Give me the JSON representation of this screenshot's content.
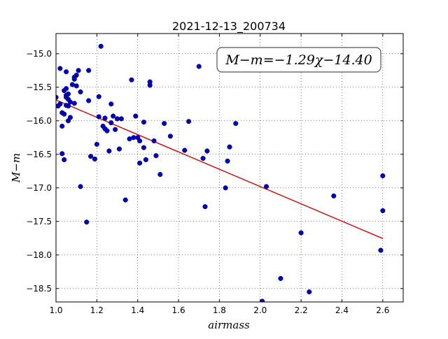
{
  "chart_data": {
    "type": "scatter",
    "title": "2021-12-13_200734",
    "xlabel": "airmass",
    "ylabel": "M−m",
    "xlim": [
      1.0,
      2.7
    ],
    "ylim": [
      -18.7,
      -14.7
    ],
    "y_inverted": true,
    "grid": true,
    "x_ticks": [
      1.0,
      1.2,
      1.4,
      1.6,
      1.8,
      2.0,
      2.2,
      2.4,
      2.6
    ],
    "x_tick_labels": [
      "1.0",
      "1.2",
      "1.4",
      "1.6",
      "1.8",
      "2.0",
      "2.2",
      "2.4",
      "2.6"
    ],
    "y_ticks": [
      -15.0,
      -15.5,
      -16.0,
      -16.5,
      -17.0,
      -17.5,
      -18.0,
      -18.5
    ],
    "y_tick_labels": [
      "−15.0",
      "−15.5",
      "−16.0",
      "−16.5",
      "−17.0",
      "−17.5",
      "−18.0",
      "−18.5"
    ],
    "annotation": "M−m=−1.29χ−14.40",
    "annotation_position": "top-right",
    "point_color": "#0000cc",
    "fit_color": "#dd0000",
    "fit_line": {
      "slope": -1.29,
      "intercept": -14.4,
      "x_range": [
        1.0,
        2.6
      ]
    },
    "points": [
      {
        "x": 1.0,
        "y": -15.65
      },
      {
        "x": 1.01,
        "y": -15.78
      },
      {
        "x": 1.02,
        "y": -15.75
      },
      {
        "x": 1.02,
        "y": -15.22
      },
      {
        "x": 1.03,
        "y": -15.88
      },
      {
        "x": 1.03,
        "y": -16.08
      },
      {
        "x": 1.03,
        "y": -16.49
      },
      {
        "x": 1.04,
        "y": -16.58
      },
      {
        "x": 1.04,
        "y": -15.9
      },
      {
        "x": 1.04,
        "y": -15.55
      },
      {
        "x": 1.05,
        "y": -15.62
      },
      {
        "x": 1.05,
        "y": -15.52
      },
      {
        "x": 1.05,
        "y": -15.77
      },
      {
        "x": 1.05,
        "y": -15.65
      },
      {
        "x": 1.05,
        "y": -15.27
      },
      {
        "x": 1.06,
        "y": -15.6
      },
      {
        "x": 1.06,
        "y": -15.68
      },
      {
        "x": 1.06,
        "y": -15.78
      },
      {
        "x": 1.06,
        "y": -16.0
      },
      {
        "x": 1.07,
        "y": -15.95
      },
      {
        "x": 1.07,
        "y": -15.72
      },
      {
        "x": 1.08,
        "y": -15.46
      },
      {
        "x": 1.09,
        "y": -15.74
      },
      {
        "x": 1.09,
        "y": -15.35
      },
      {
        "x": 1.09,
        "y": -15.38
      },
      {
        "x": 1.1,
        "y": -15.48
      },
      {
        "x": 1.1,
        "y": -15.32
      },
      {
        "x": 1.11,
        "y": -15.25
      },
      {
        "x": 1.12,
        "y": -15.57
      },
      {
        "x": 1.12,
        "y": -16.98
      },
      {
        "x": 1.15,
        "y": -17.51
      },
      {
        "x": 1.16,
        "y": -15.7
      },
      {
        "x": 1.16,
        "y": -15.25
      },
      {
        "x": 1.17,
        "y": -16.53
      },
      {
        "x": 1.19,
        "y": -16.57
      },
      {
        "x": 1.2,
        "y": -16.35
      },
      {
        "x": 1.21,
        "y": -15.64
      },
      {
        "x": 1.21,
        "y": -15.94
      },
      {
        "x": 1.22,
        "y": -14.89
      },
      {
        "x": 1.23,
        "y": -16.08
      },
      {
        "x": 1.24,
        "y": -16.12
      },
      {
        "x": 1.24,
        "y": -15.96
      },
      {
        "x": 1.25,
        "y": -16.15
      },
      {
        "x": 1.26,
        "y": -16.45
      },
      {
        "x": 1.27,
        "y": -16.03
      },
      {
        "x": 1.27,
        "y": -15.75
      },
      {
        "x": 1.28,
        "y": -15.93
      },
      {
        "x": 1.29,
        "y": -16.13
      },
      {
        "x": 1.3,
        "y": -15.97
      },
      {
        "x": 1.31,
        "y": -16.42
      },
      {
        "x": 1.32,
        "y": -15.97
      },
      {
        "x": 1.34,
        "y": -17.18
      },
      {
        "x": 1.36,
        "y": -16.27
      },
      {
        "x": 1.37,
        "y": -15.39
      },
      {
        "x": 1.38,
        "y": -16.25
      },
      {
        "x": 1.39,
        "y": -15.93
      },
      {
        "x": 1.4,
        "y": -16.25
      },
      {
        "x": 1.41,
        "y": -16.3
      },
      {
        "x": 1.41,
        "y": -16.63
      },
      {
        "x": 1.43,
        "y": -16.4
      },
      {
        "x": 1.43,
        "y": -16.02
      },
      {
        "x": 1.44,
        "y": -16.58
      },
      {
        "x": 1.46,
        "y": -15.42
      },
      {
        "x": 1.46,
        "y": -15.47
      },
      {
        "x": 1.48,
        "y": -16.3
      },
      {
        "x": 1.49,
        "y": -16.52
      },
      {
        "x": 1.51,
        "y": -16.8
      },
      {
        "x": 1.53,
        "y": -16.04
      },
      {
        "x": 1.56,
        "y": -16.23
      },
      {
        "x": 1.63,
        "y": -16.44
      },
      {
        "x": 1.65,
        "y": -16.01
      },
      {
        "x": 1.7,
        "y": -15.19
      },
      {
        "x": 1.72,
        "y": -16.56
      },
      {
        "x": 1.73,
        "y": -17.28
      },
      {
        "x": 1.74,
        "y": -16.45
      },
      {
        "x": 1.83,
        "y": -17.0
      },
      {
        "x": 1.84,
        "y": -16.6
      },
      {
        "x": 1.85,
        "y": -16.39
      },
      {
        "x": 1.88,
        "y": -16.04
      },
      {
        "x": 2.01,
        "y": -18.69
      },
      {
        "x": 2.03,
        "y": -16.98
      },
      {
        "x": 2.1,
        "y": -18.35
      },
      {
        "x": 2.2,
        "y": -17.67
      },
      {
        "x": 2.24,
        "y": -18.55
      },
      {
        "x": 2.36,
        "y": -17.12
      },
      {
        "x": 2.59,
        "y": -17.93
      },
      {
        "x": 2.6,
        "y": -16.82
      },
      {
        "x": 2.6,
        "y": -17.34
      }
    ]
  }
}
